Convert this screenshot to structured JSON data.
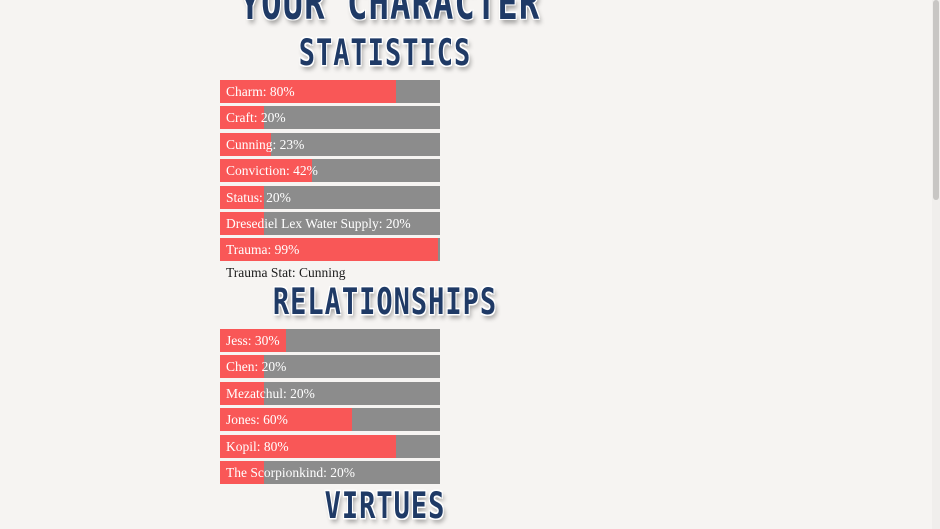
{
  "page": {
    "title": "Your Character"
  },
  "statistics": {
    "heading": "Statistics",
    "items": [
      {
        "label": "Charm: 80%",
        "value": 80
      },
      {
        "label": "Craft: 20%",
        "value": 20
      },
      {
        "label": "Cunning: 23%",
        "value": 23
      },
      {
        "label": "Conviction: 42%",
        "value": 42
      },
      {
        "label": "Status: 20%",
        "value": 20
      },
      {
        "label": "Dresediel Lex Water Supply: 20%",
        "value": 20
      },
      {
        "label": "Trauma: 99%",
        "value": 99
      }
    ],
    "trauma_note": "Trauma Stat: Cunning"
  },
  "relationships": {
    "heading": "Relationships",
    "items": [
      {
        "label": "Jess: 30%",
        "value": 30
      },
      {
        "label": "Chen: 20%",
        "value": 20
      },
      {
        "label": "Mezatchul: 20%",
        "value": 20
      },
      {
        "label": "Jones: 60%",
        "value": 60
      },
      {
        "label": "Kopil: 80%",
        "value": 80
      },
      {
        "label": "The Scorpionkind: 20%",
        "value": 20
      }
    ]
  },
  "virtues": {
    "heading": "Virtues"
  },
  "colors": {
    "background": "#f6f4f2",
    "bar_fill": "#f95757",
    "bar_track": "#8c8c8c",
    "heading": "#1f3a66",
    "label_text": "#ffffff"
  }
}
